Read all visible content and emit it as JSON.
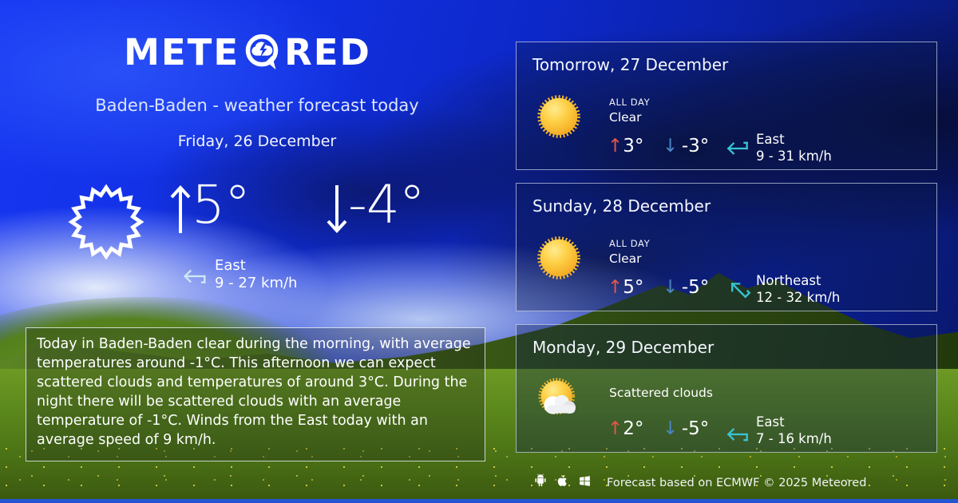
{
  "logo": {
    "text_pre": "METE",
    "text_post": "RED",
    "icon": "meteored-bubble-icon"
  },
  "page": {
    "title": "Baden-Baden - weather forecast today",
    "date": "Friday, 26 December"
  },
  "today": {
    "condition_icon": "sun-outline-icon",
    "high": "5°",
    "low": "-4°",
    "wind": {
      "direction": "East",
      "speed": "9 - 27 km/h",
      "icon": "wind-arrow-east-icon"
    }
  },
  "summary": "Today in Baden-Baden clear during the morning, with average temperatures around -1°C. This afternoon we can expect scattered clouds and temperatures of around 3°C. During the night there will be scattered clouds with an average temperature of -1°C. Winds from the East today with an average speed of 9 km/h.",
  "cards": [
    {
      "title": "Tomorrow, 27 December",
      "period": "ALL DAY",
      "condition": "Clear",
      "condition_icon": "sun-icon",
      "high": "3°",
      "low": "-3°",
      "wind": {
        "direction": "East",
        "speed": "9 - 31 km/h",
        "icon": "wind-arrow-east-icon"
      }
    },
    {
      "title": "Sunday, 28 December",
      "period": "ALL DAY",
      "condition": "Clear",
      "condition_icon": "sun-icon",
      "high": "5°",
      "low": "-5°",
      "wind": {
        "direction": "Northeast",
        "speed": "12 - 32 km/h",
        "icon": "wind-arrow-northeast-icon"
      }
    },
    {
      "title": "Monday, 29 December",
      "period": "",
      "condition": "Scattered clouds",
      "condition_icon": "sun-cloud-icon",
      "high": "2°",
      "low": "-5°",
      "wind": {
        "direction": "East",
        "speed": "7 - 16 km/h",
        "icon": "wind-arrow-east-icon"
      }
    }
  ],
  "footer": {
    "platform_icons": [
      "android-icon",
      "apple-icon",
      "windows-icon"
    ],
    "credit": "Forecast based on ECMWF © 2025 Meteored"
  },
  "colors": {
    "wind_arrow": "#38c4d5",
    "temp_up": "#e4564a",
    "temp_down": "#4a87c7",
    "sky_bright": "#1636f2",
    "grass": "#5d8a1d"
  }
}
